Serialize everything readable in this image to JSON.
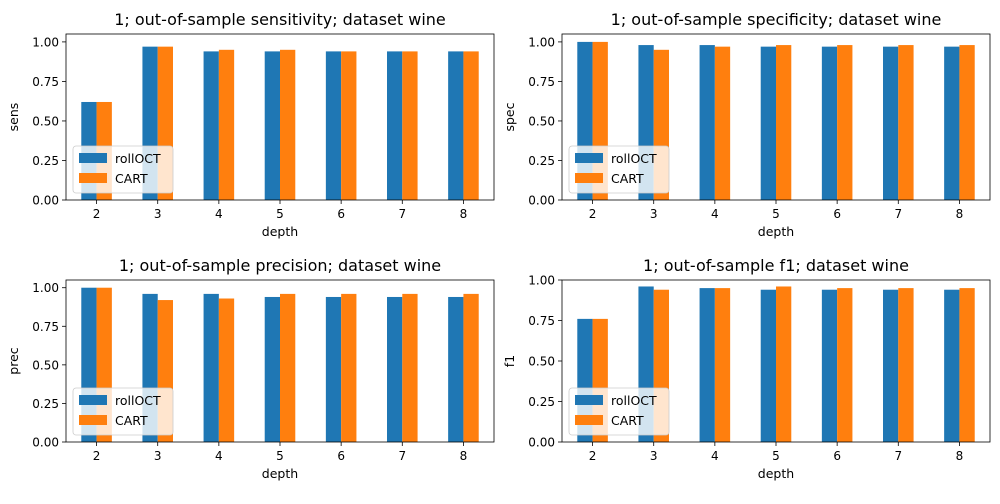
{
  "chart_data": [
    {
      "type": "bar",
      "title": "1; out-of-sample sensitivity; dataset wine",
      "xlabel": "depth",
      "ylabel": "sens",
      "categories": [
        "2",
        "3",
        "4",
        "5",
        "6",
        "7",
        "8"
      ],
      "ylim": [
        0,
        1.05
      ],
      "yticks": [
        "0.00",
        "0.25",
        "0.50",
        "0.75",
        "1.00"
      ],
      "legend": "bottom-left",
      "series": [
        {
          "name": "rollOCT",
          "color": "#1f77b4",
          "values": [
            0.62,
            0.97,
            0.94,
            0.94,
            0.94,
            0.94,
            0.94
          ]
        },
        {
          "name": "CART",
          "color": "#ff7f0e",
          "values": [
            0.62,
            0.97,
            0.95,
            0.95,
            0.94,
            0.94,
            0.94
          ]
        }
      ]
    },
    {
      "type": "bar",
      "title": "1; out-of-sample specificity; dataset wine",
      "xlabel": "depth",
      "ylabel": "spec",
      "categories": [
        "2",
        "3",
        "4",
        "5",
        "6",
        "7",
        "8"
      ],
      "ylim": [
        0,
        1.05
      ],
      "yticks": [
        "0.00",
        "0.25",
        "0.50",
        "0.75",
        "1.00"
      ],
      "legend": "bottom-left",
      "series": [
        {
          "name": "rollOCT",
          "color": "#1f77b4",
          "values": [
            1.0,
            0.98,
            0.98,
            0.97,
            0.97,
            0.97,
            0.97
          ]
        },
        {
          "name": "CART",
          "color": "#ff7f0e",
          "values": [
            1.0,
            0.95,
            0.97,
            0.98,
            0.98,
            0.98,
            0.98
          ]
        }
      ]
    },
    {
      "type": "bar",
      "title": "1; out-of-sample precision; dataset wine",
      "xlabel": "depth",
      "ylabel": "prec",
      "categories": [
        "2",
        "3",
        "4",
        "5",
        "6",
        "7",
        "8"
      ],
      "ylim": [
        0,
        1.05
      ],
      "yticks": [
        "0.00",
        "0.25",
        "0.50",
        "0.75",
        "1.00"
      ],
      "legend": "bottom-left",
      "series": [
        {
          "name": "rollOCT",
          "color": "#1f77b4",
          "values": [
            1.0,
            0.96,
            0.96,
            0.94,
            0.94,
            0.94,
            0.94
          ]
        },
        {
          "name": "CART",
          "color": "#ff7f0e",
          "values": [
            1.0,
            0.92,
            0.93,
            0.96,
            0.96,
            0.96,
            0.96
          ]
        }
      ]
    },
    {
      "type": "bar",
      "title": "1; out-of-sample f1; dataset wine",
      "xlabel": "depth",
      "ylabel": "f1",
      "categories": [
        "2",
        "3",
        "4",
        "5",
        "6",
        "7",
        "8"
      ],
      "ylim": [
        0,
        1.0
      ],
      "yticks": [
        "0.00",
        "0.25",
        "0.50",
        "0.75",
        "1.00"
      ],
      "legend": "bottom-left",
      "series": [
        {
          "name": "rollOCT",
          "color": "#1f77b4",
          "values": [
            0.76,
            0.96,
            0.95,
            0.94,
            0.94,
            0.94,
            0.94
          ]
        },
        {
          "name": "CART",
          "color": "#ff7f0e",
          "values": [
            0.76,
            0.94,
            0.95,
            0.96,
            0.95,
            0.95,
            0.95
          ]
        }
      ]
    }
  ]
}
